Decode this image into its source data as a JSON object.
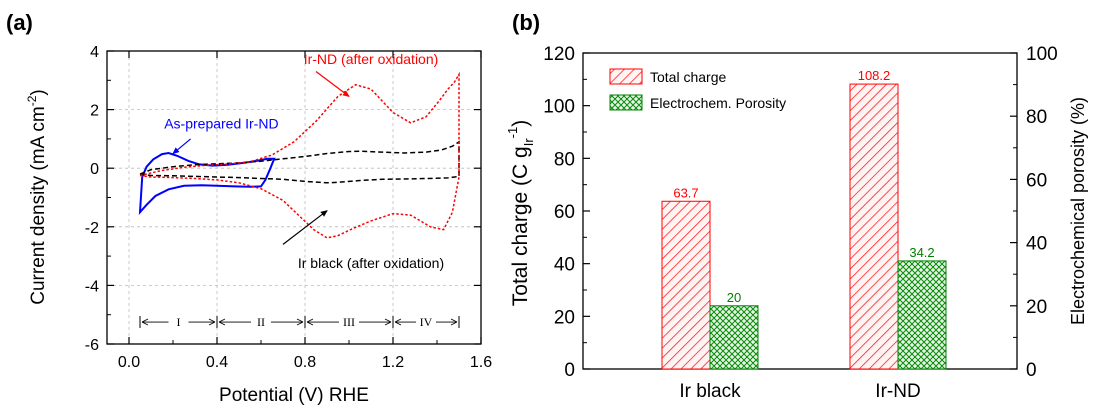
{
  "chart_data": [
    {
      "type": "line",
      "panel_label": "(a)",
      "xlabel": "Potential (V) RHE",
      "ylabel_main": "Current density (mA cm",
      "ylabel_sup": "-2",
      "ylabel_end": ")",
      "xlim": [
        -0.1,
        1.6
      ],
      "ylim": [
        -6,
        4
      ],
      "xticks": [
        0.0,
        0.4,
        0.8,
        1.2,
        1.6
      ],
      "xtick_labels": [
        "0.0",
        "0.4",
        "0.8",
        "1.2",
        "1.6"
      ],
      "yticks": [
        -6,
        -4,
        -2,
        0,
        2,
        4
      ],
      "ytick_labels": [
        "-6",
        "-4",
        "-2",
        "0",
        "2",
        "4"
      ],
      "grid": true,
      "regions": {
        "y": -5.25,
        "boundaries": [
          0.05,
          0.4,
          0.8,
          1.2,
          1.5
        ],
        "labels": [
          "I",
          "II",
          "III",
          "IV"
        ]
      },
      "series": [
        {
          "name": "As-prepared Ir-ND",
          "color": "#0000ff",
          "dash": "solid",
          "points": [
            [
              0.06,
              -0.3
            ],
            [
              0.08,
              0.05
            ],
            [
              0.11,
              0.3
            ],
            [
              0.15,
              0.48
            ],
            [
              0.18,
              0.52
            ],
            [
              0.22,
              0.42
            ],
            [
              0.27,
              0.25
            ],
            [
              0.32,
              0.13
            ],
            [
              0.38,
              0.09
            ],
            [
              0.45,
              0.12
            ],
            [
              0.52,
              0.18
            ],
            [
              0.58,
              0.25
            ],
            [
              0.63,
              0.32
            ],
            [
              0.66,
              0.32
            ],
            [
              0.64,
              -0.05
            ],
            [
              0.62,
              -0.4
            ],
            [
              0.6,
              -0.62
            ],
            [
              0.55,
              -0.63
            ],
            [
              0.48,
              -0.62
            ],
            [
              0.4,
              -0.6
            ],
            [
              0.33,
              -0.58
            ],
            [
              0.25,
              -0.6
            ],
            [
              0.18,
              -0.72
            ],
            [
              0.12,
              -0.95
            ],
            [
              0.08,
              -1.25
            ],
            [
              0.05,
              -1.5
            ],
            [
              0.055,
              -0.9
            ],
            [
              0.06,
              -0.3
            ]
          ]
        },
        {
          "name": "Ir black (after oxidation)",
          "color": "#000000",
          "dash": "dashed",
          "points": [
            [
              0.05,
              -0.2
            ],
            [
              0.1,
              -0.05
            ],
            [
              0.2,
              0.05
            ],
            [
              0.3,
              0.12
            ],
            [
              0.4,
              0.15
            ],
            [
              0.5,
              0.18
            ],
            [
              0.6,
              0.24
            ],
            [
              0.7,
              0.32
            ],
            [
              0.8,
              0.4
            ],
            [
              0.9,
              0.5
            ],
            [
              1.0,
              0.57
            ],
            [
              1.05,
              0.58
            ],
            [
              1.15,
              0.55
            ],
            [
              1.25,
              0.52
            ],
            [
              1.35,
              0.55
            ],
            [
              1.42,
              0.62
            ],
            [
              1.47,
              0.75
            ],
            [
              1.5,
              0.9
            ],
            [
              1.5,
              -0.28
            ],
            [
              1.45,
              -0.33
            ],
            [
              1.35,
              -0.35
            ],
            [
              1.25,
              -0.37
            ],
            [
              1.15,
              -0.38
            ],
            [
              1.05,
              -0.42
            ],
            [
              0.95,
              -0.48
            ],
            [
              0.9,
              -0.5
            ],
            [
              0.8,
              -0.45
            ],
            [
              0.7,
              -0.38
            ],
            [
              0.6,
              -0.35
            ],
            [
              0.5,
              -0.32
            ],
            [
              0.4,
              -0.3
            ],
            [
              0.3,
              -0.28
            ],
            [
              0.2,
              -0.26
            ],
            [
              0.1,
              -0.25
            ],
            [
              0.05,
              -0.2
            ]
          ]
        },
        {
          "name": "Ir-ND (after oxidation)",
          "color": "#ff0000",
          "dash": "dotted",
          "points": [
            [
              0.05,
              -0.25
            ],
            [
              0.15,
              -0.08
            ],
            [
              0.25,
              0.03
            ],
            [
              0.35,
              0.1
            ],
            [
              0.45,
              0.14
            ],
            [
              0.55,
              0.22
            ],
            [
              0.65,
              0.45
            ],
            [
              0.75,
              0.9
            ],
            [
              0.85,
              1.6
            ],
            [
              0.95,
              2.45
            ],
            [
              1.03,
              2.85
            ],
            [
              1.1,
              2.7
            ],
            [
              1.2,
              1.9
            ],
            [
              1.28,
              1.55
            ],
            [
              1.35,
              1.75
            ],
            [
              1.41,
              2.3
            ],
            [
              1.45,
              2.7
            ],
            [
              1.48,
              2.95
            ],
            [
              1.5,
              3.2
            ],
            [
              1.5,
              -0.3
            ],
            [
              1.47,
              -1.5
            ],
            [
              1.43,
              -2.1
            ],
            [
              1.37,
              -2.0
            ],
            [
              1.28,
              -1.6
            ],
            [
              1.2,
              -1.55
            ],
            [
              1.1,
              -1.8
            ],
            [
              1.02,
              -2.05
            ],
            [
              0.95,
              -2.3
            ],
            [
              0.9,
              -2.38
            ],
            [
              0.84,
              -2.1
            ],
            [
              0.77,
              -1.6
            ],
            [
              0.7,
              -1.1
            ],
            [
              0.6,
              -0.7
            ],
            [
              0.5,
              -0.5
            ],
            [
              0.4,
              -0.4
            ],
            [
              0.3,
              -0.35
            ],
            [
              0.2,
              -0.32
            ],
            [
              0.1,
              -0.3
            ],
            [
              0.05,
              -0.25
            ]
          ]
        }
      ],
      "annotations": [
        {
          "text": "As-prepared Ir-ND",
          "color": "#0000ff",
          "x": 0.42,
          "y": 1.35,
          "arrow_from": [
            0.28,
            1.0
          ],
          "arrow_to": [
            0.2,
            0.5
          ]
        },
        {
          "text": "Ir-ND (after oxidation)",
          "color": "#ff0000",
          "x": 1.1,
          "y": 3.55,
          "arrow_from": [
            0.85,
            3.3
          ],
          "arrow_to": [
            1.0,
            2.45
          ]
        },
        {
          "text": "Ir black (after oxidation)",
          "color": "#000000",
          "x": 1.1,
          "y": -3.4,
          "arrow_from": [
            0.7,
            -2.6
          ],
          "arrow_to": [
            0.9,
            -1.45
          ]
        }
      ]
    },
    {
      "type": "bar",
      "panel_label": "(b)",
      "categories": [
        "Ir black",
        "Ir-ND"
      ],
      "ylabel_left_main": "Total charge (C g",
      "ylabel_left_sub": "Ir",
      "ylabel_left_sup": "-1",
      "ylabel_left_end": ")",
      "ylabel_right": "Electrochemical porosity (%)",
      "ylim_left": [
        0,
        120
      ],
      "ylim_right": [
        0,
        100
      ],
      "yticks_left": [
        0,
        20,
        40,
        60,
        80,
        100,
        120
      ],
      "ytick_labels_left": [
        "0",
        "20",
        "40",
        "60",
        "80",
        "100",
        "120"
      ],
      "yticks_right": [
        0,
        20,
        40,
        60,
        80,
        100
      ],
      "ytick_labels_right": [
        "0",
        "20",
        "40",
        "60",
        "80",
        "100"
      ],
      "legend_position": "top-left",
      "series": [
        {
          "name": "Total charge",
          "axis": "left",
          "color": "#ff0000",
          "fill": "#ffd6d6",
          "pattern": "diagonal-hatch",
          "values": [
            63.7,
            108.2
          ],
          "labels": [
            "63.7",
            "108.2"
          ]
        },
        {
          "name": "Electrochem. Porosity",
          "axis": "right",
          "color": "#008000",
          "fill": "#cfeecf",
          "pattern": "cross-hatch",
          "values": [
            20,
            34.2
          ],
          "labels": [
            "20",
            "34.2"
          ]
        }
      ]
    }
  ]
}
